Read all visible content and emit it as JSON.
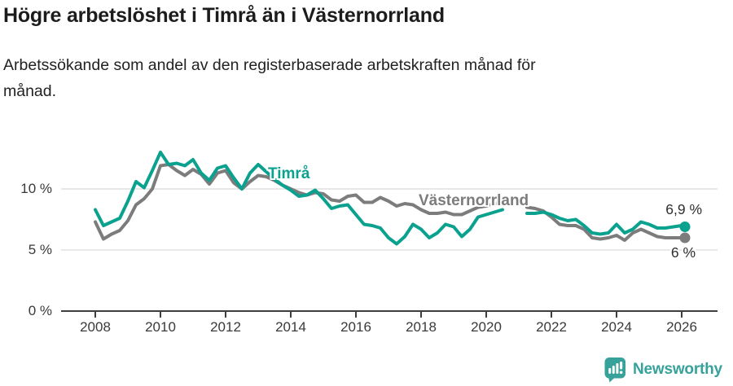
{
  "header": {
    "title": "Högre arbetslöshet i Timrå än i Västernorrland",
    "subtitle": "Arbetssökande som andel av den registerbaserade arbetskraften månad för månad."
  },
  "colors": {
    "accent_teal": "#0aa18f",
    "series_gray": "#7c7c7c",
    "axis": "#3f3f3f",
    "grid": "#e8e8e8",
    "text": "#1c1c1c",
    "logo_teal": "#36a29a"
  },
  "chart_data": {
    "type": "line",
    "x_unit": "year (monthly data shown, sampled quarterly)",
    "grid": "horizontal",
    "legend": "inline-labels",
    "xlim": [
      2007.5,
      2026.6
    ],
    "ylim": [
      0,
      14
    ],
    "x_ticks": [
      2008,
      2010,
      2012,
      2014,
      2016,
      2018,
      2020,
      2022,
      2024,
      2026
    ],
    "y_ticks": [
      {
        "value": 0,
        "label": "0 %"
      },
      {
        "value": 5,
        "label": "5 %"
      },
      {
        "value": 10,
        "label": "10 %"
      }
    ],
    "x": [
      2008,
      2008.25,
      2008.5,
      2008.75,
      2009,
      2009.25,
      2009.5,
      2009.75,
      2010,
      2010.25,
      2010.5,
      2010.75,
      2011,
      2011.25,
      2011.5,
      2011.75,
      2012,
      2012.25,
      2012.5,
      2012.75,
      2013,
      2013.25,
      2013.5,
      2013.75,
      2014,
      2014.25,
      2014.5,
      2014.75,
      2015,
      2015.25,
      2015.5,
      2015.75,
      2016,
      2016.25,
      2016.5,
      2016.75,
      2017,
      2017.25,
      2017.5,
      2017.75,
      2018,
      2018.25,
      2018.5,
      2018.75,
      2019,
      2019.25,
      2019.5,
      2019.75,
      2020,
      2020.25,
      2020.5,
      2020.75,
      2021,
      2021.25,
      2021.5,
      2021.75,
      2022,
      2022.25,
      2022.5,
      2022.75,
      2023,
      2023.25,
      2023.5,
      2023.75,
      2024,
      2024.25,
      2024.5,
      2024.75,
      2025,
      2025.25,
      2025.5,
      2025.75,
      2026,
      2026.1
    ],
    "series": [
      {
        "name": "Timrå",
        "color": "#0aa18f",
        "end_label": "6,9 %",
        "end_value": 6.9,
        "values": [
          8.3,
          7.0,
          7.3,
          7.6,
          9.0,
          10.6,
          10.1,
          11.5,
          13.0,
          12.0,
          12.1,
          11.9,
          12.4,
          11.3,
          10.7,
          11.7,
          11.9,
          10.9,
          10.0,
          11.3,
          12.0,
          11.4,
          10.8,
          10.3,
          9.9,
          9.4,
          9.5,
          9.9,
          9.2,
          8.4,
          8.6,
          8.7,
          7.9,
          7.1,
          7.0,
          6.8,
          6.0,
          5.5,
          6.1,
          7.1,
          6.7,
          6.0,
          6.4,
          7.1,
          6.9,
          6.1,
          6.7,
          7.7,
          7.9,
          8.1,
          8.3,
          null,
          null,
          8.0,
          8.0,
          8.1,
          7.9,
          7.6,
          7.4,
          7.5,
          7.0,
          6.4,
          6.3,
          6.4,
          7.1,
          6.4,
          6.7,
          7.3,
          7.1,
          6.8,
          6.8,
          6.9,
          7.0,
          6.9
        ]
      },
      {
        "name": "Västernorrland",
        "color": "#7c7c7c",
        "end_label": "6 %",
        "end_value": 6.0,
        "values": [
          7.3,
          5.9,
          6.3,
          6.6,
          7.4,
          8.7,
          9.2,
          10.0,
          11.9,
          12.0,
          11.5,
          11.1,
          11.6,
          11.2,
          10.4,
          11.3,
          11.5,
          10.5,
          10.0,
          10.6,
          11.1,
          11.0,
          10.7,
          10.3,
          10.0,
          9.7,
          9.5,
          9.7,
          9.6,
          9.1,
          9.0,
          9.4,
          9.5,
          8.9,
          8.9,
          9.3,
          9.0,
          8.6,
          8.8,
          8.7,
          8.3,
          8.0,
          8.0,
          8.1,
          7.9,
          7.9,
          8.2,
          8.5,
          8.6,
          8.8,
          8.9,
          null,
          null,
          8.5,
          8.4,
          8.2,
          7.7,
          7.1,
          7.0,
          7.0,
          6.7,
          6.0,
          5.9,
          6.0,
          6.2,
          5.8,
          6.4,
          6.7,
          6.4,
          6.1,
          6.0,
          6.0,
          6.0,
          6.0
        ]
      }
    ]
  },
  "branding": {
    "logo_text": "Newsworthy"
  }
}
